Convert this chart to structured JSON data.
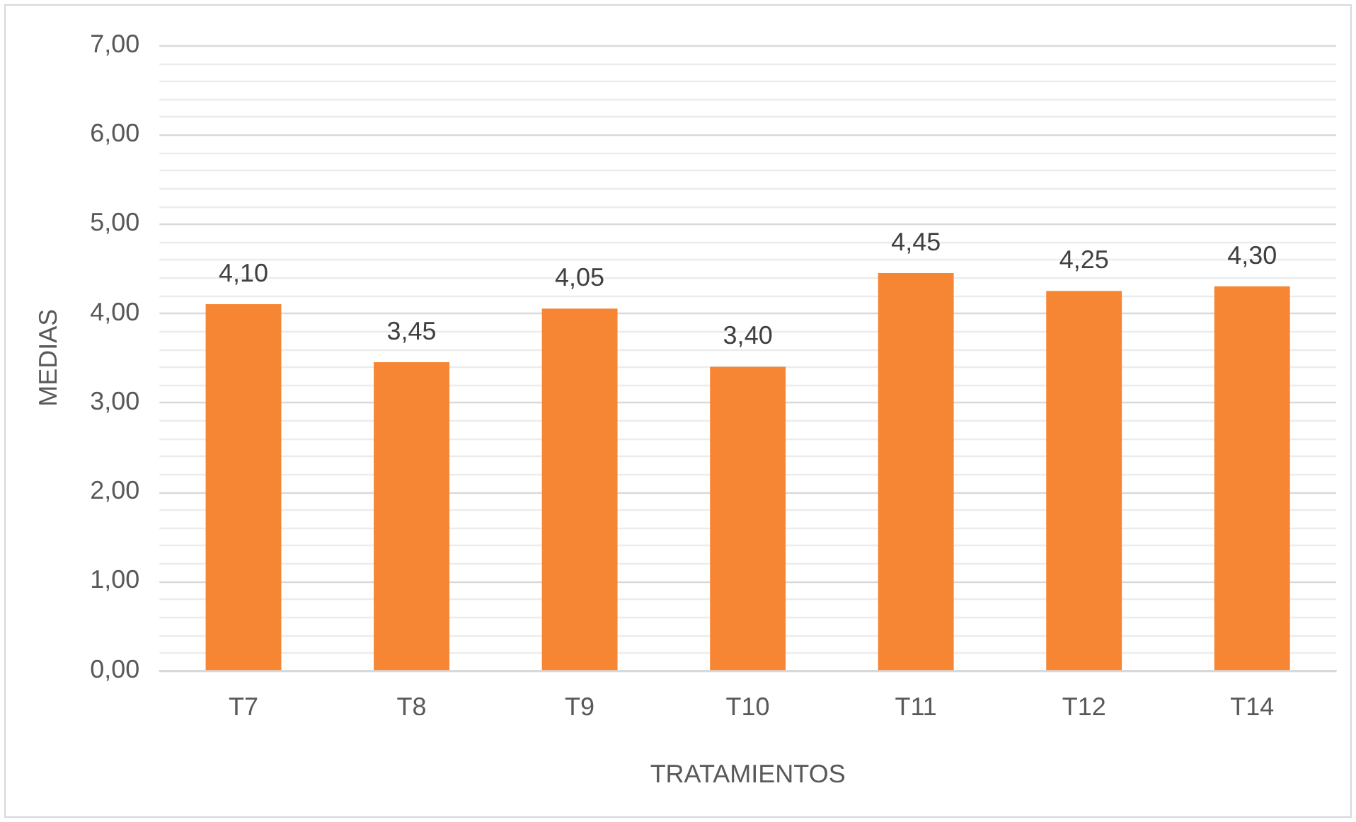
{
  "chart_data": {
    "type": "bar",
    "xlabel": "TRATAMIENTOS",
    "ylabel": "MEDIAS",
    "categories": [
      "T7",
      "T8",
      "T9",
      "T10",
      "T11",
      "T12",
      "T14"
    ],
    "values": [
      4.1,
      3.45,
      4.05,
      3.4,
      4.45,
      4.25,
      4.3
    ],
    "value_labels": [
      "4,10",
      "3,45",
      "4,05",
      "3,40",
      "4,45",
      "4,25",
      "4,30"
    ],
    "color": "#f68634",
    "ylim": [
      0,
      7
    ],
    "yticks": [
      {
        "value": 0,
        "label": "0,00"
      },
      {
        "value": 0.2,
        "label": null
      },
      {
        "value": 0.4,
        "label": null
      },
      {
        "value": 0.6,
        "label": null
      },
      {
        "value": 0.8,
        "label": null
      },
      {
        "value": 1,
        "label": "1,00"
      },
      {
        "value": 1.2,
        "label": null
      },
      {
        "value": 1.4,
        "label": null
      },
      {
        "value": 1.6,
        "label": null
      },
      {
        "value": 1.8,
        "label": null
      },
      {
        "value": 2,
        "label": "2,00"
      },
      {
        "value": 2.2,
        "label": null
      },
      {
        "value": 2.4,
        "label": null
      },
      {
        "value": 2.6,
        "label": null
      },
      {
        "value": 2.8,
        "label": null
      },
      {
        "value": 3,
        "label": "3,00"
      },
      {
        "value": 3.2,
        "label": null
      },
      {
        "value": 3.4,
        "label": null
      },
      {
        "value": 3.6,
        "label": null
      },
      {
        "value": 3.8,
        "label": null
      },
      {
        "value": 4,
        "label": "4,00"
      },
      {
        "value": 4.2,
        "label": null
      },
      {
        "value": 4.4,
        "label": null
      },
      {
        "value": 4.6,
        "label": null
      },
      {
        "value": 4.8,
        "label": null
      },
      {
        "value": 5,
        "label": "5,00"
      },
      {
        "value": 5.2,
        "label": null
      },
      {
        "value": 5.4,
        "label": null
      },
      {
        "value": 5.6,
        "label": null
      },
      {
        "value": 5.8,
        "label": null
      },
      {
        "value": 6,
        "label": "6,00"
      },
      {
        "value": 6.2,
        "label": null
      },
      {
        "value": 6.4,
        "label": null
      },
      {
        "value": 6.6,
        "label": null
      },
      {
        "value": 6.8,
        "label": null
      },
      {
        "value": 7,
        "label": "7,00"
      }
    ],
    "grid": "y",
    "legend": false
  }
}
